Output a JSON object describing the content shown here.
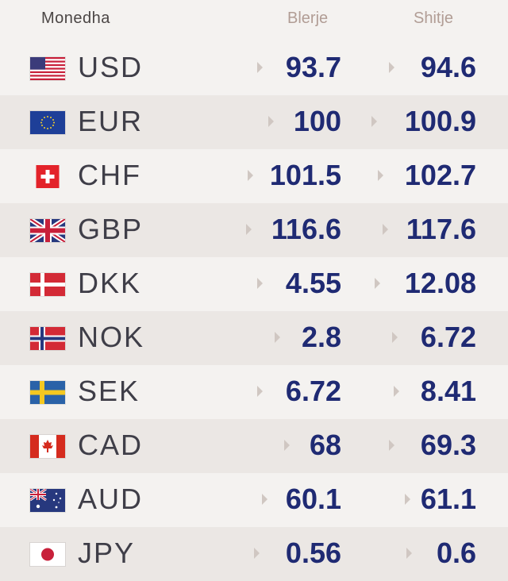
{
  "header": {
    "currency": "Monedha",
    "buy": "Blerje",
    "sell": "Shitje"
  },
  "rows": [
    {
      "code": "USD",
      "buy": "93.7",
      "sell": "94.6",
      "flag": "us-flag-icon"
    },
    {
      "code": "EUR",
      "buy": "100",
      "sell": "100.9",
      "flag": "eu-flag-icon"
    },
    {
      "code": "CHF",
      "buy": "101.5",
      "sell": "102.7",
      "flag": "ch-flag-icon"
    },
    {
      "code": "GBP",
      "buy": "116.6",
      "sell": "117.6",
      "flag": "gb-flag-icon"
    },
    {
      "code": "DKK",
      "buy": "4.55",
      "sell": "12.08",
      "flag": "dk-flag-icon"
    },
    {
      "code": "NOK",
      "buy": "2.8",
      "sell": "6.72",
      "flag": "no-flag-icon"
    },
    {
      "code": "SEK",
      "buy": "6.72",
      "sell": "8.41",
      "flag": "se-flag-icon"
    },
    {
      "code": "CAD",
      "buy": "68",
      "sell": "69.3",
      "flag": "ca-flag-icon"
    },
    {
      "code": "AUD",
      "buy": "60.1",
      "sell": "61.1",
      "flag": "au-flag-icon"
    },
    {
      "code": "JPY",
      "buy": "0.56",
      "sell": "0.6",
      "flag": "jp-flag-icon"
    }
  ],
  "colors": {
    "value": "#1f2a73",
    "code": "#3f3e48",
    "header_muted": "#b19d95",
    "row_alt": "#ebe7e4"
  }
}
